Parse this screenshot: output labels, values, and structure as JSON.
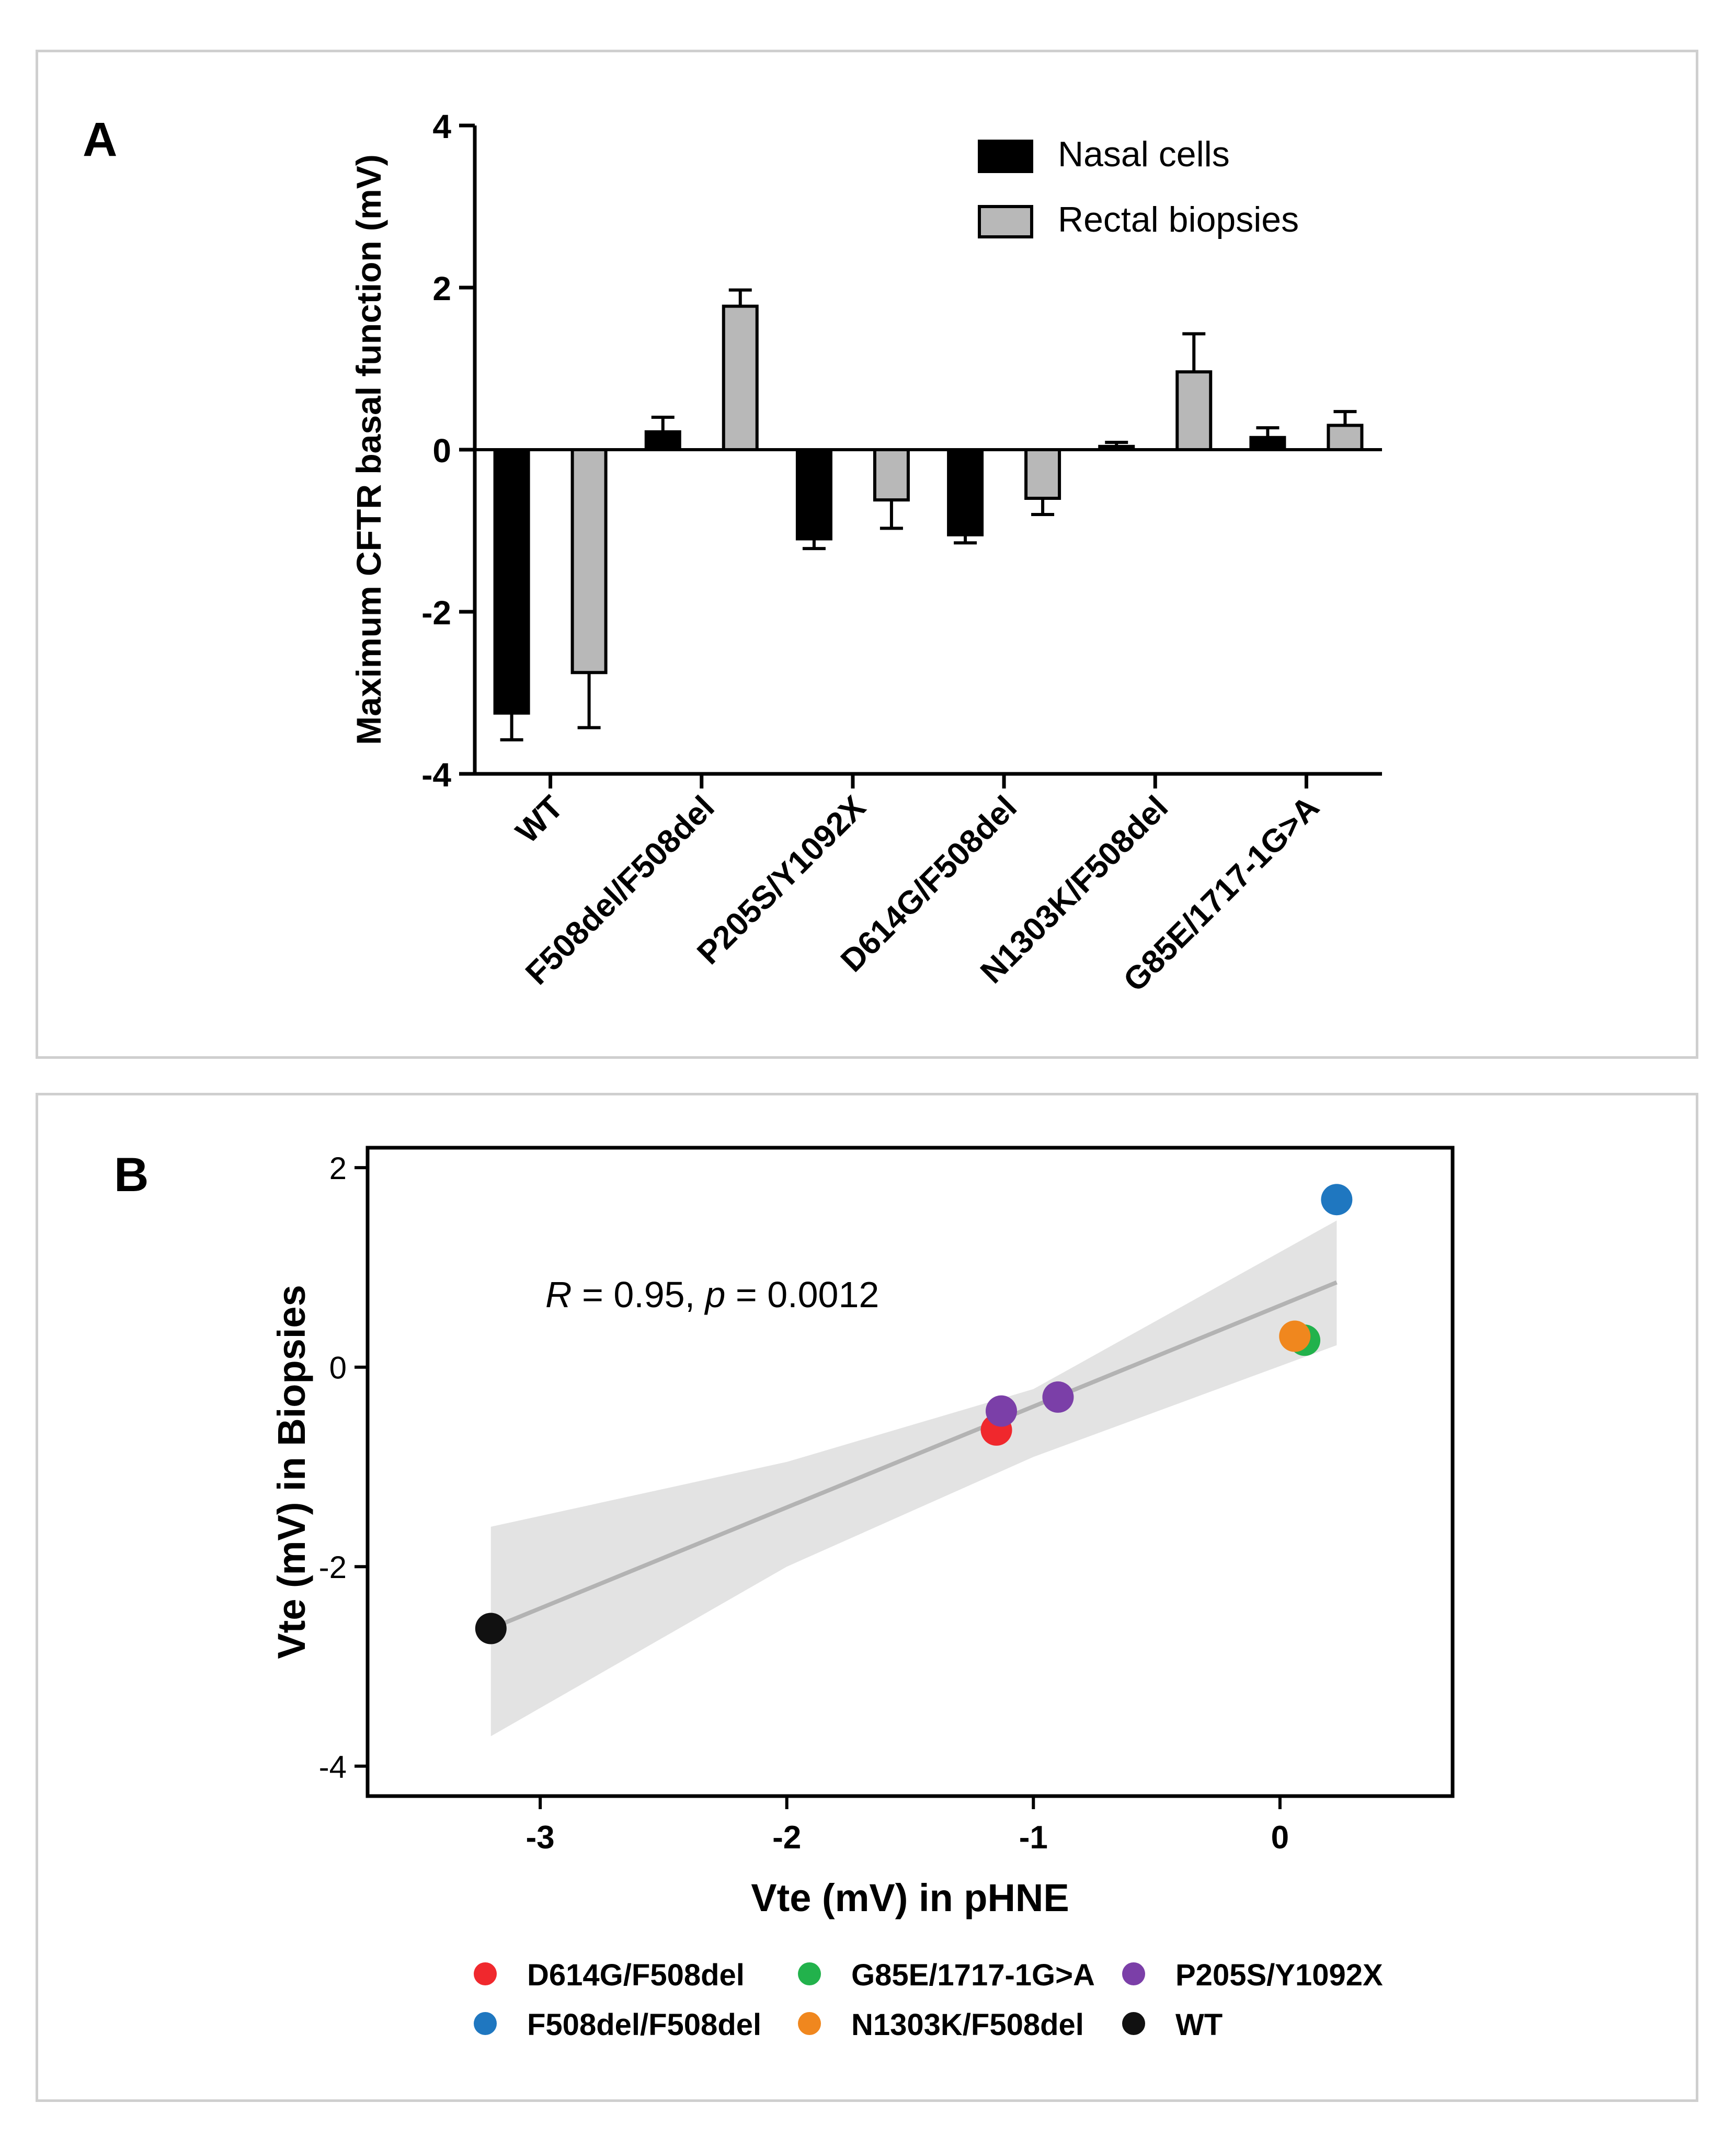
{
  "panel_a": {
    "label": "A"
  },
  "panel_b": {
    "label": "B"
  },
  "chart_data": [
    {
      "type": "bar",
      "title": "",
      "xlabel": "",
      "ylabel": "Maximum CFTR basal function (mV)",
      "ylim": [
        -4,
        4
      ],
      "yticks": [
        -4,
        -2,
        0,
        2,
        4
      ],
      "categories": [
        "WT",
        "F508del/F508del",
        "P205S/Y1092X",
        "D614G/F508del",
        "N1303K/F508del",
        "G85E/1717-1G>A"
      ],
      "series": [
        {
          "name": "Nasal cells",
          "color": "#000000",
          "values": [
            -3.25,
            0.22,
            -1.1,
            -1.05,
            0.04,
            0.15
          ],
          "errors": [
            0.33,
            0.18,
            0.12,
            0.1,
            0.05,
            0.12
          ]
        },
        {
          "name": "Rectal biopsies",
          "color": "#b8b8b8",
          "values": [
            -2.75,
            1.77,
            -0.62,
            -0.6,
            0.96,
            0.3
          ],
          "errors": [
            0.68,
            0.2,
            0.35,
            0.2,
            0.47,
            0.17
          ]
        }
      ],
      "legend": "top-right"
    },
    {
      "type": "scatter",
      "title": "",
      "xlabel": "Vte (mV) in pHNE",
      "ylabel": "Vte (mV) in Biopsies",
      "xlim": [
        -3.7,
        0.7
      ],
      "ylim": [
        -4.3,
        2.2
      ],
      "xticks": [
        -3,
        -2,
        -1,
        0
      ],
      "yticks": [
        -4,
        -2,
        0,
        2
      ],
      "annotation": {
        "r_label": "R",
        "r_text": " = 0.95, ",
        "p_label": "p",
        "p_text": " = 0.0012"
      },
      "points": [
        {
          "group": "D614G/F508del",
          "x": -1.15,
          "y": -0.63
        },
        {
          "group": "F508del/F508del",
          "x": 0.23,
          "y": 1.68
        },
        {
          "group": "G85E/1717-1G>A",
          "x": 0.1,
          "y": 0.27
        },
        {
          "group": "N1303K/F508del",
          "x": 0.06,
          "y": 0.31
        },
        {
          "group": "P205S/Y1092X",
          "x": -1.13,
          "y": -0.44
        },
        {
          "group": "P205S/Y1092X",
          "x": -0.9,
          "y": -0.3
        },
        {
          "group": "WT",
          "x": -3.2,
          "y": -2.62
        }
      ],
      "regression": {
        "x": [
          -3.2,
          0.23
        ],
        "y": [
          -2.62,
          0.85
        ],
        "color": "#b3b3b3"
      },
      "confidence_band": {
        "x": [
          -3.2,
          -2.0,
          -1.0,
          0.23
        ],
        "upper": [
          -1.6,
          -0.95,
          -0.22,
          1.47
        ],
        "lower": [
          -3.7,
          -2.0,
          -0.9,
          0.22
        ],
        "color": "#e3e3e3"
      },
      "legend": [
        {
          "name": "D614G/F508del",
          "color": "#f0282d"
        },
        {
          "name": "G85E/1717-1G>A",
          "color": "#22b24c"
        },
        {
          "name": "P205S/Y1092X",
          "color": "#7b3fa8"
        },
        {
          "name": "F508del/F508del",
          "color": "#1f77c0"
        },
        {
          "name": "N1303K/F508del",
          "color": "#f0871e"
        },
        {
          "name": "WT",
          "color": "#111111"
        }
      ]
    }
  ]
}
